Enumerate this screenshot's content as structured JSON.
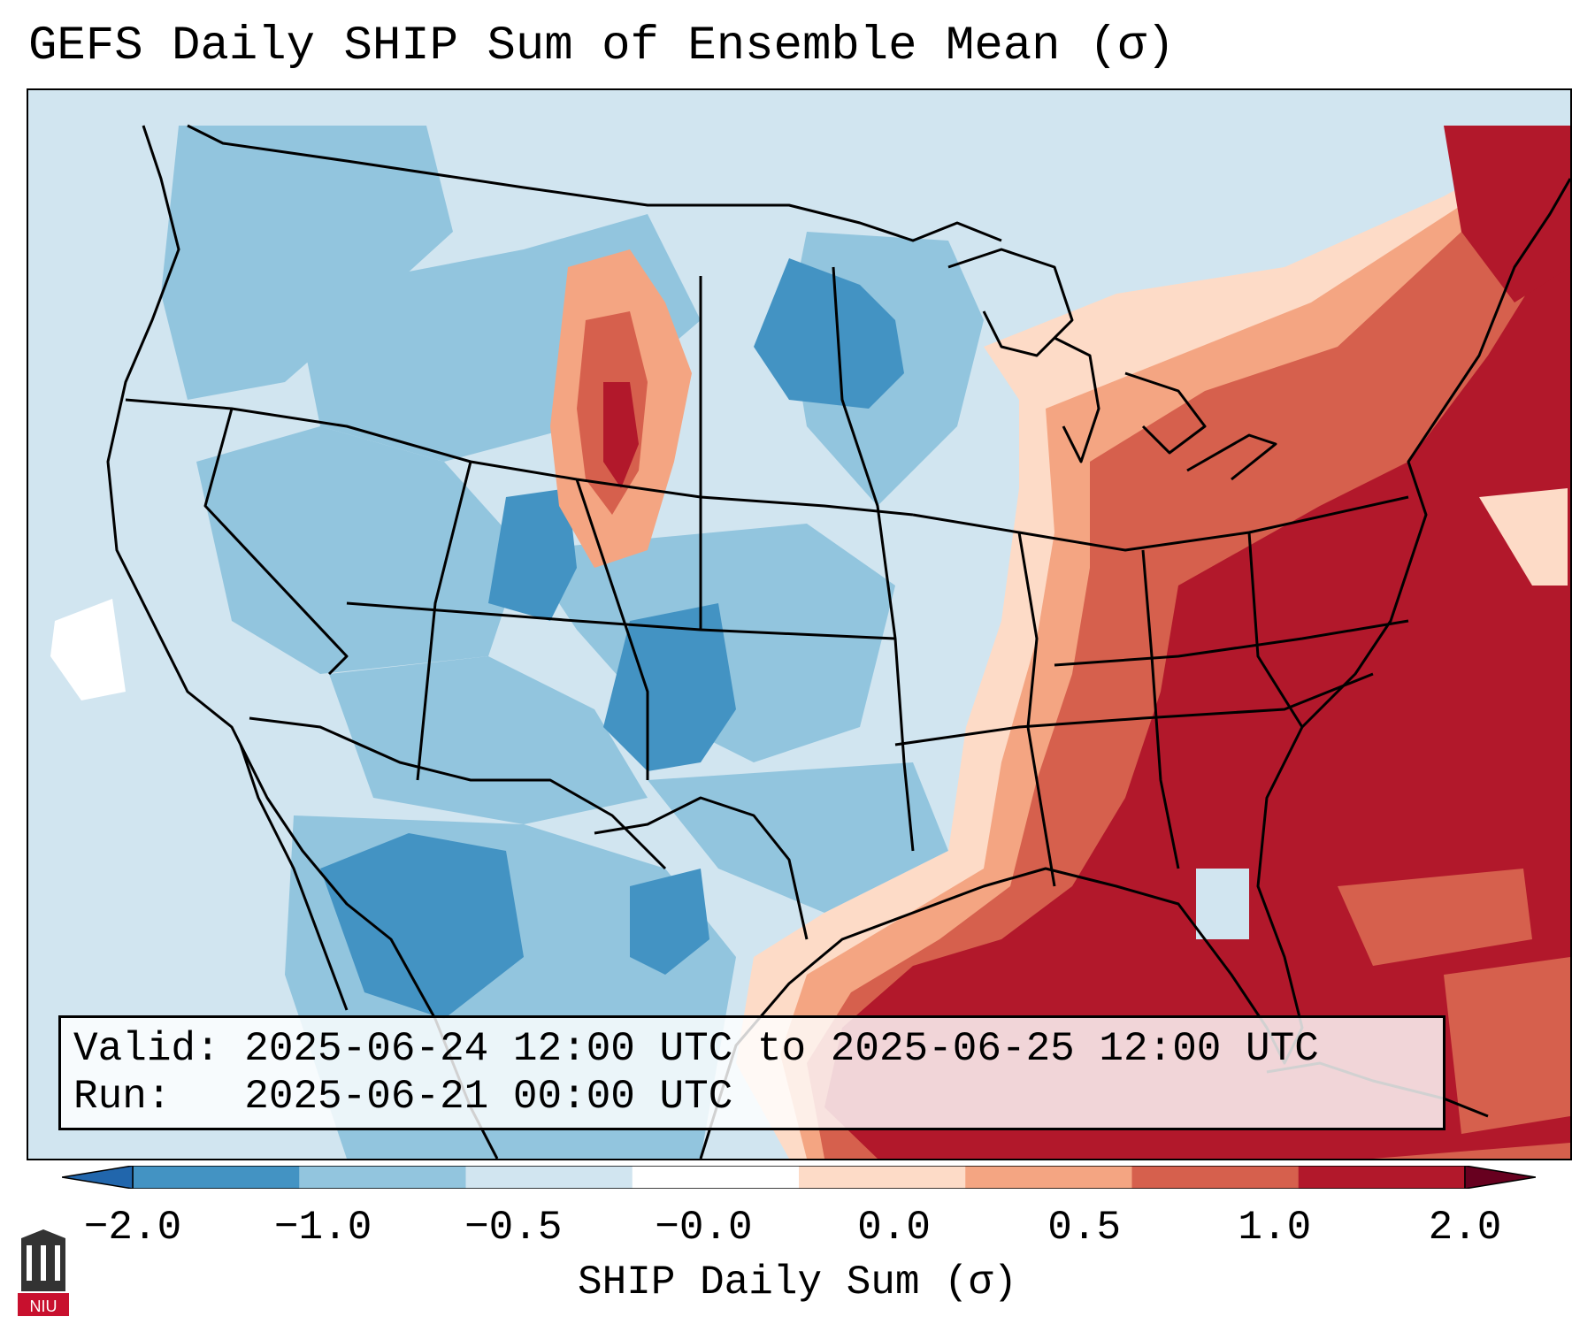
{
  "title": "GEFS Daily SHIP Sum of Ensemble Mean (σ)",
  "info": {
    "valid_line": "Valid: 2025-06-24 12:00 UTC to 2025-06-25 12:00 UTC",
    "run_line": "Run:   2025-06-21 00:00 UTC"
  },
  "colorbar": {
    "label": "SHIP Daily Sum (σ)",
    "ticks": [
      "−2.0",
      "−1.0",
      "−0.5",
      "−0.0",
      "0.0",
      "0.5",
      "1.0",
      "2.0"
    ],
    "colors": [
      "#4393c3",
      "#92c5de",
      "#d1e5f0",
      "#ffffff",
      "#fddbc7",
      "#f4a582",
      "#d6604d",
      "#b2182b"
    ],
    "extend": "both"
  },
  "logo": {
    "text": "NIU",
    "icon": "niu-logo-icon"
  }
}
